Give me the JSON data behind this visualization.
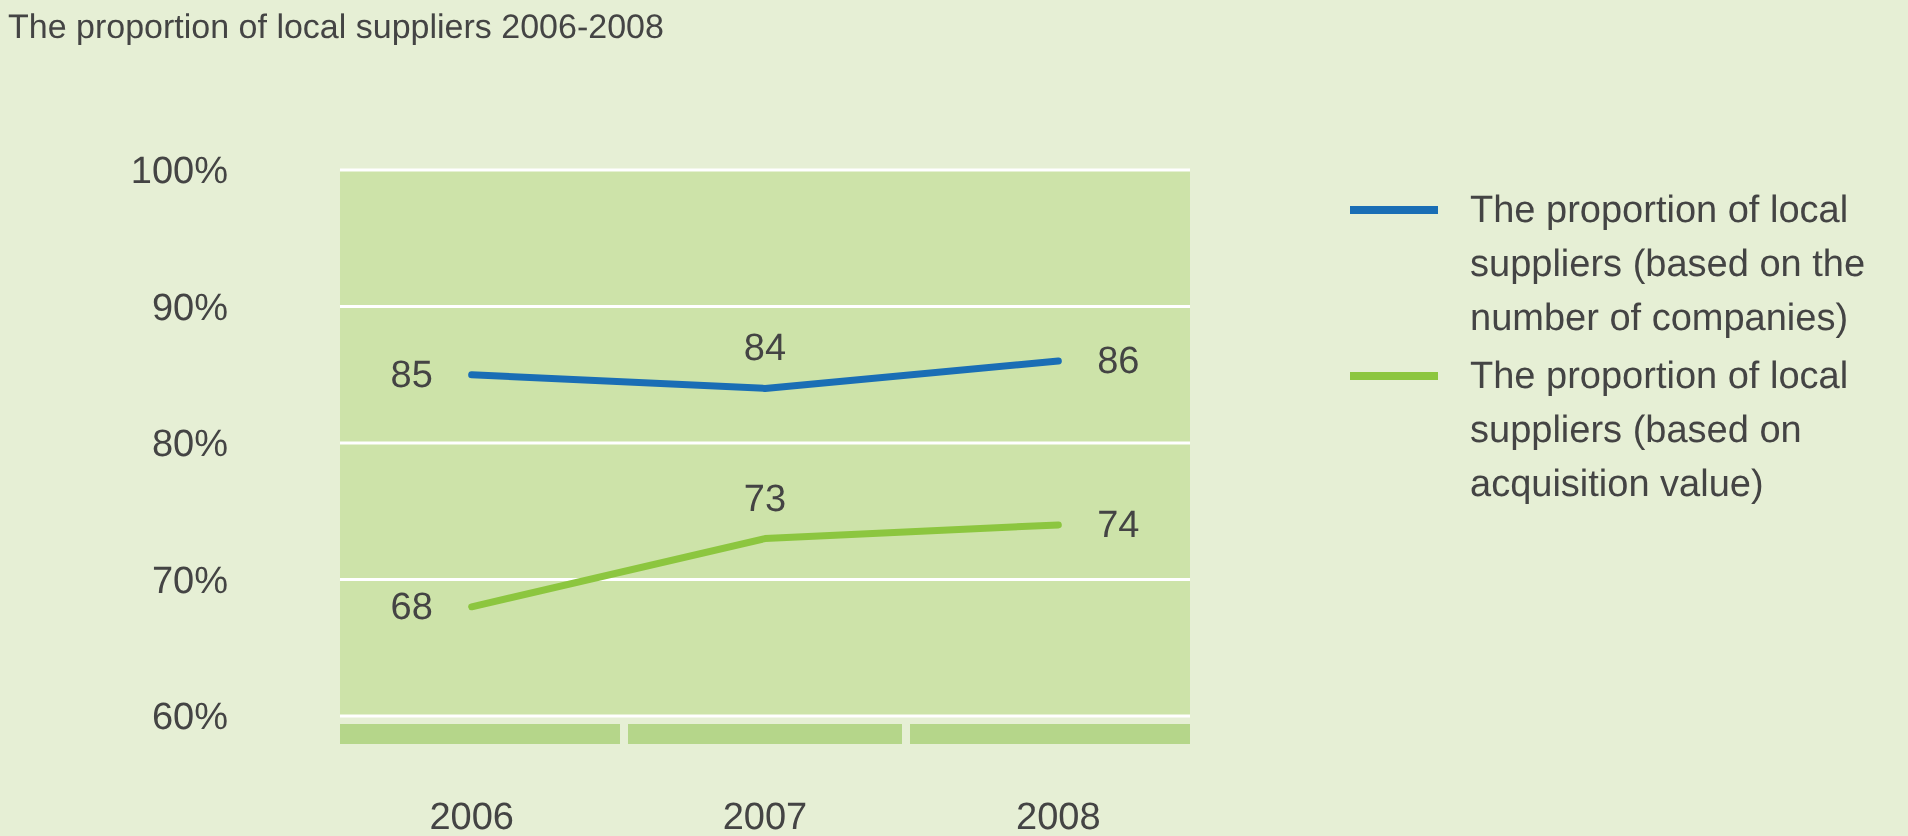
{
  "chart_data": {
    "type": "line",
    "title": "The proportion of local suppliers 2006-2008",
    "categories": [
      "2006",
      "2007",
      "2008"
    ],
    "series": [
      {
        "name": "The proportion of local suppliers (based on the number of companies)",
        "color": "#1a6eb5",
        "values": [
          85,
          84,
          86
        ]
      },
      {
        "name": "The proportion of local suppliers (based on acquisition value)",
        "color": "#8cc63f",
        "values": [
          68,
          73,
          74
        ]
      }
    ],
    "ylim": [
      60,
      100
    ],
    "yticks": [
      {
        "value": 60,
        "label": "60%"
      },
      {
        "value": 70,
        "label": "70%"
      },
      {
        "value": 80,
        "label": "80%"
      },
      {
        "value": 90,
        "label": "90%"
      },
      {
        "value": 100,
        "label": "100%"
      }
    ],
    "grid": "y",
    "legend": "right",
    "data_labels": true,
    "marker": "none",
    "line_style": "solid"
  }
}
